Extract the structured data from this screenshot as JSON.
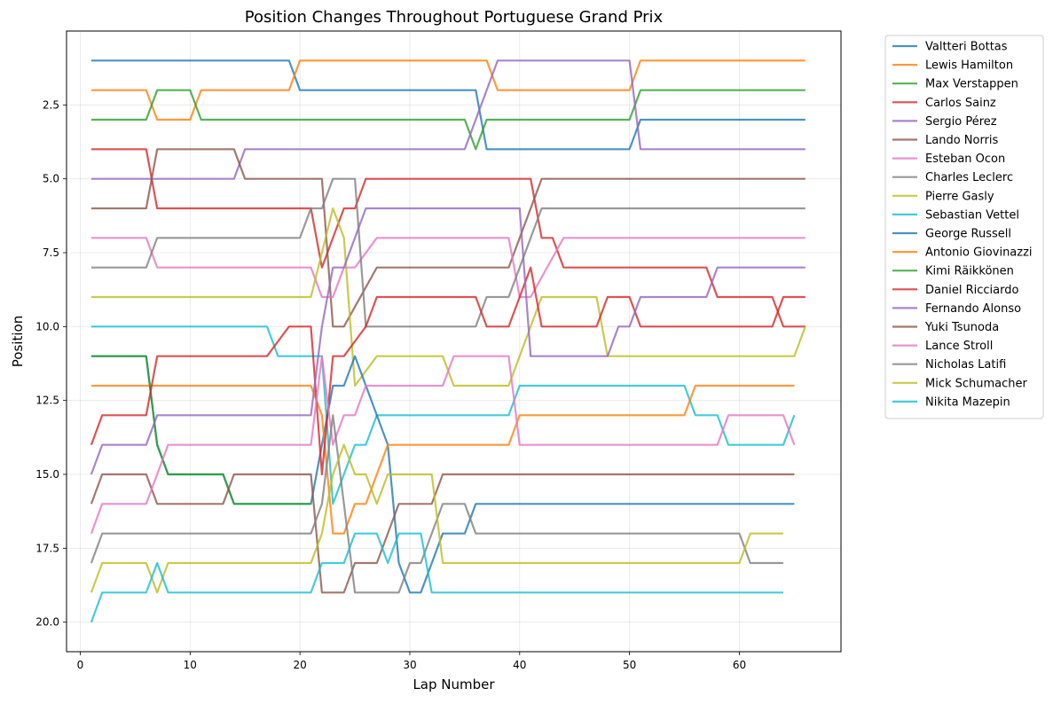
{
  "chart_data": {
    "type": "line",
    "title": "Position Changes Throughout Portuguese Grand Prix",
    "xlabel": "Lap Number",
    "ylabel": "Position",
    "xlim": [
      -1.25,
      69.25
    ],
    "ylim": [
      21,
      0
    ],
    "y_inverted": true,
    "x_ticks": [
      0,
      10,
      20,
      30,
      40,
      50,
      60
    ],
    "y_ticks": [
      2.5,
      5.0,
      7.5,
      10.0,
      12.5,
      15.0,
      17.5,
      20.0
    ],
    "y_tick_labels": [
      "2.5",
      "5.0",
      "7.5",
      "10.0",
      "12.5",
      "15.0",
      "17.5",
      "20.0"
    ],
    "grid": true,
    "legend_position": "outside top-right",
    "series": [
      {
        "name": "Valtteri Bottas",
        "color": "#1f77b4",
        "points": [
          [
            1,
            1
          ],
          [
            19,
            1
          ],
          [
            20,
            2
          ],
          [
            36,
            2
          ],
          [
            37,
            4
          ],
          [
            50,
            4
          ],
          [
            51,
            3
          ],
          [
            66,
            3
          ]
        ]
      },
      {
        "name": "Lewis Hamilton",
        "color": "#ff7f0e",
        "points": [
          [
            1,
            2
          ],
          [
            6,
            2
          ],
          [
            7,
            3
          ],
          [
            10,
            3
          ],
          [
            11,
            2
          ],
          [
            19,
            2
          ],
          [
            20,
            1
          ],
          [
            37,
            1
          ],
          [
            38,
            2
          ],
          [
            50,
            2
          ],
          [
            51,
            1
          ],
          [
            66,
            1
          ]
        ]
      },
      {
        "name": "Max Verstappen",
        "color": "#2ca02c",
        "points": [
          [
            1,
            3
          ],
          [
            6,
            3
          ],
          [
            7,
            2
          ],
          [
            10,
            2
          ],
          [
            11,
            3
          ],
          [
            35,
            3
          ],
          [
            36,
            4
          ],
          [
            37,
            3
          ],
          [
            50,
            3
          ],
          [
            51,
            2
          ],
          [
            66,
            2
          ]
        ]
      },
      {
        "name": "Carlos Sainz",
        "color": "#d62728",
        "points": [
          [
            1,
            4
          ],
          [
            6,
            4
          ],
          [
            7,
            6
          ],
          [
            21,
            6
          ],
          [
            22,
            8
          ],
          [
            23,
            7
          ],
          [
            24,
            6
          ],
          [
            25,
            6
          ],
          [
            26,
            5
          ],
          [
            41,
            5
          ],
          [
            42,
            7
          ],
          [
            43,
            7
          ],
          [
            44,
            8
          ],
          [
            57,
            8
          ],
          [
            58,
            9
          ],
          [
            63,
            9
          ],
          [
            64,
            10
          ],
          [
            66,
            10
          ]
        ]
      },
      {
        "name": "Sergio Pérez",
        "color": "#9467bd",
        "points": [
          [
            1,
            5
          ],
          [
            14,
            5
          ],
          [
            15,
            4
          ],
          [
            35,
            4
          ],
          [
            38,
            1
          ],
          [
            50,
            1
          ],
          [
            51,
            4
          ],
          [
            66,
            4
          ]
        ]
      },
      {
        "name": "Lando Norris",
        "color": "#8c564b",
        "points": [
          [
            1,
            6
          ],
          [
            6,
            6
          ],
          [
            7,
            4
          ],
          [
            14,
            4
          ],
          [
            15,
            5
          ],
          [
            22,
            5
          ],
          [
            23,
            10
          ],
          [
            24,
            10
          ],
          [
            27,
            8
          ],
          [
            39,
            8
          ],
          [
            42,
            5
          ],
          [
            66,
            5
          ]
        ]
      },
      {
        "name": "Esteban Ocon",
        "color": "#e377c2",
        "points": [
          [
            1,
            7
          ],
          [
            6,
            7
          ],
          [
            7,
            8
          ],
          [
            21,
            8
          ],
          [
            22,
            9
          ],
          [
            23,
            9
          ],
          [
            24,
            8
          ],
          [
            25,
            8
          ],
          [
            27,
            7
          ],
          [
            39,
            7
          ],
          [
            40,
            9
          ],
          [
            41,
            9
          ],
          [
            44,
            7
          ],
          [
            66,
            7
          ]
        ]
      },
      {
        "name": "Charles Leclerc",
        "color": "#7f7f7f",
        "points": [
          [
            1,
            8
          ],
          [
            6,
            8
          ],
          [
            7,
            7
          ],
          [
            20,
            7
          ],
          [
            21,
            6
          ],
          [
            22,
            6
          ],
          [
            23,
            5
          ],
          [
            25,
            5
          ],
          [
            26,
            10
          ],
          [
            36,
            10
          ],
          [
            37,
            9
          ],
          [
            39,
            9
          ],
          [
            42,
            6
          ],
          [
            66,
            6
          ]
        ]
      },
      {
        "name": "Pierre Gasly",
        "color": "#bcbd22",
        "points": [
          [
            1,
            9
          ],
          [
            21,
            9
          ],
          [
            23,
            6
          ],
          [
            24,
            7
          ],
          [
            25,
            12
          ],
          [
            27,
            11
          ],
          [
            33,
            11
          ],
          [
            34,
            12
          ],
          [
            39,
            12
          ],
          [
            42,
            9
          ],
          [
            47,
            9
          ],
          [
            48,
            11
          ],
          [
            65,
            11
          ],
          [
            66,
            10
          ]
        ]
      },
      {
        "name": "Sebastian Vettel",
        "color": "#17becf",
        "points": [
          [
            1,
            10
          ],
          [
            17,
            10
          ],
          [
            18,
            11
          ],
          [
            21,
            11
          ],
          [
            22,
            11
          ],
          [
            23,
            16
          ],
          [
            25,
            14
          ],
          [
            26,
            14
          ],
          [
            27,
            13
          ],
          [
            39,
            13
          ],
          [
            40,
            12
          ],
          [
            55,
            12
          ],
          [
            56,
            13
          ],
          [
            58,
            13
          ],
          [
            59,
            14
          ],
          [
            64,
            14
          ],
          [
            65,
            13
          ]
        ]
      },
      {
        "name": "George Russell",
        "color": "#1f77b4",
        "points": [
          [
            1,
            11
          ],
          [
            6,
            11
          ],
          [
            7,
            14
          ],
          [
            8,
            15
          ],
          [
            13,
            15
          ],
          [
            14,
            16
          ],
          [
            21,
            16
          ],
          [
            22,
            14
          ],
          [
            23,
            12
          ],
          [
            24,
            12
          ],
          [
            25,
            11
          ],
          [
            28,
            14
          ],
          [
            29,
            18
          ],
          [
            30,
            19
          ],
          [
            31,
            19
          ],
          [
            33,
            17
          ],
          [
            35,
            17
          ],
          [
            36,
            16
          ],
          [
            65,
            16
          ]
        ]
      },
      {
        "name": "Antonio Giovinazzi",
        "color": "#ff7f0e",
        "points": [
          [
            1,
            12
          ],
          [
            21,
            12
          ],
          [
            22,
            13
          ],
          [
            23,
            17
          ],
          [
            24,
            17
          ],
          [
            25,
            16
          ],
          [
            26,
            16
          ],
          [
            28,
            14
          ],
          [
            39,
            14
          ],
          [
            40,
            13
          ],
          [
            55,
            13
          ],
          [
            56,
            12
          ],
          [
            65,
            12
          ]
        ]
      },
      {
        "name": "Kimi Räikkönen",
        "color": "#2ca02c",
        "points": [
          [
            1,
            11
          ],
          [
            6,
            11
          ],
          [
            7,
            14
          ],
          [
            8,
            15
          ],
          [
            13,
            15
          ],
          [
            14,
            16
          ],
          [
            21,
            16
          ]
        ]
      },
      {
        "name": "Daniel Ricciardo",
        "color": "#d62728",
        "points": [
          [
            1,
            14
          ],
          [
            2,
            13
          ],
          [
            6,
            13
          ],
          [
            7,
            11
          ],
          [
            17,
            11
          ],
          [
            19,
            10
          ],
          [
            21,
            10
          ],
          [
            22,
            15
          ],
          [
            23,
            11
          ],
          [
            24,
            11
          ],
          [
            26,
            10
          ],
          [
            27,
            9
          ],
          [
            36,
            9
          ],
          [
            37,
            10
          ],
          [
            39,
            10
          ],
          [
            41,
            8
          ],
          [
            42,
            10
          ],
          [
            47,
            10
          ],
          [
            48,
            9
          ],
          [
            50,
            9
          ],
          [
            51,
            10
          ],
          [
            63,
            10
          ],
          [
            64,
            9
          ],
          [
            66,
            9
          ]
        ]
      },
      {
        "name": "Fernando Alonso",
        "color": "#9467bd",
        "points": [
          [
            1,
            15
          ],
          [
            2,
            14
          ],
          [
            6,
            14
          ],
          [
            7,
            13
          ],
          [
            21,
            13
          ],
          [
            22,
            10
          ],
          [
            23,
            8
          ],
          [
            24,
            8
          ],
          [
            26,
            6
          ],
          [
            40,
            6
          ],
          [
            41,
            11
          ],
          [
            48,
            11
          ],
          [
            49,
            10
          ],
          [
            50,
            10
          ],
          [
            51,
            9
          ],
          [
            57,
            9
          ],
          [
            58,
            8
          ],
          [
            66,
            8
          ]
        ]
      },
      {
        "name": "Yuki Tsunoda",
        "color": "#8c564b",
        "points": [
          [
            1,
            16
          ],
          [
            2,
            15
          ],
          [
            6,
            15
          ],
          [
            7,
            16
          ],
          [
            13,
            16
          ],
          [
            14,
            15
          ],
          [
            21,
            15
          ],
          [
            22,
            19
          ],
          [
            24,
            19
          ],
          [
            25,
            18
          ],
          [
            27,
            18
          ],
          [
            29,
            16
          ],
          [
            32,
            16
          ],
          [
            33,
            15
          ],
          [
            65,
            15
          ]
        ]
      },
      {
        "name": "Lance Stroll",
        "color": "#e377c2",
        "points": [
          [
            1,
            17
          ],
          [
            2,
            16
          ],
          [
            6,
            16
          ],
          [
            8,
            14
          ],
          [
            21,
            14
          ],
          [
            22,
            11
          ],
          [
            23,
            14
          ],
          [
            24,
            13
          ],
          [
            25,
            13
          ],
          [
            26,
            12
          ],
          [
            33,
            12
          ],
          [
            34,
            11
          ],
          [
            39,
            11
          ],
          [
            40,
            14
          ],
          [
            58,
            14
          ],
          [
            59,
            13
          ],
          [
            64,
            13
          ],
          [
            65,
            14
          ]
        ]
      },
      {
        "name": "Nicholas Latifi",
        "color": "#7f7f7f",
        "points": [
          [
            1,
            18
          ],
          [
            2,
            17
          ],
          [
            21,
            17
          ],
          [
            22,
            16
          ],
          [
            23,
            13
          ],
          [
            25,
            19
          ],
          [
            29,
            19
          ],
          [
            30,
            18
          ],
          [
            31,
            18
          ],
          [
            33,
            16
          ],
          [
            35,
            16
          ],
          [
            36,
            17
          ],
          [
            60,
            17
          ],
          [
            61,
            18
          ],
          [
            64,
            18
          ]
        ]
      },
      {
        "name": "Mick Schumacher",
        "color": "#bcbd22",
        "points": [
          [
            1,
            19
          ],
          [
            2,
            18
          ],
          [
            6,
            18
          ],
          [
            7,
            19
          ],
          [
            8,
            18
          ],
          [
            21,
            18
          ],
          [
            22,
            17
          ],
          [
            23,
            15
          ],
          [
            24,
            14
          ],
          [
            25,
            15
          ],
          [
            26,
            15
          ],
          [
            27,
            16
          ],
          [
            28,
            15
          ],
          [
            32,
            15
          ],
          [
            33,
            18
          ],
          [
            60,
            18
          ],
          [
            61,
            17
          ],
          [
            64,
            17
          ]
        ]
      },
      {
        "name": "Nikita Mazepin",
        "color": "#17becf",
        "points": [
          [
            1,
            20
          ],
          [
            2,
            19
          ],
          [
            6,
            19
          ],
          [
            7,
            18
          ],
          [
            8,
            19
          ],
          [
            21,
            19
          ],
          [
            22,
            18
          ],
          [
            24,
            18
          ],
          [
            25,
            17
          ],
          [
            27,
            17
          ],
          [
            28,
            18
          ],
          [
            29,
            17
          ],
          [
            31,
            17
          ],
          [
            32,
            19
          ],
          [
            64,
            19
          ]
        ]
      }
    ]
  }
}
